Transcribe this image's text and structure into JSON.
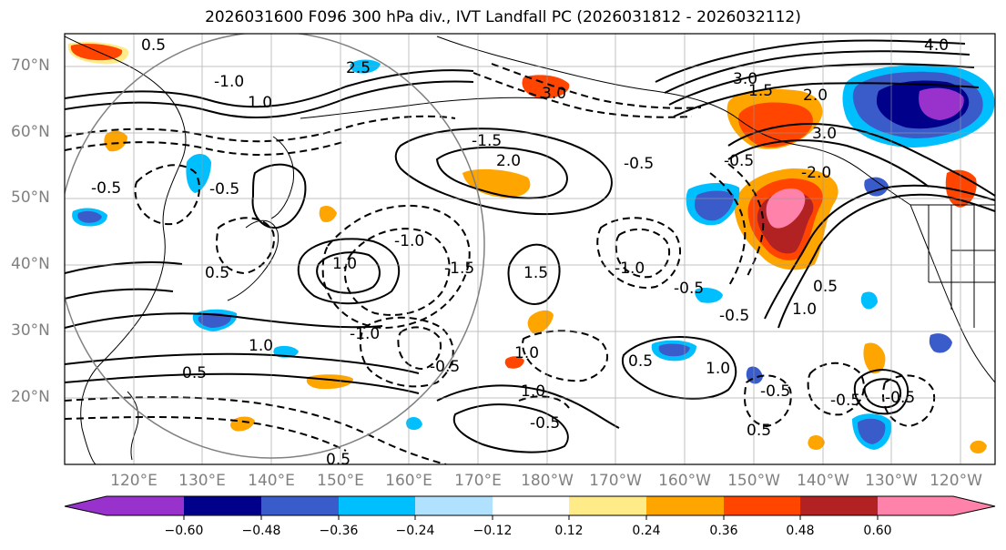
{
  "title": "2026031600 F096 300 hPa div., IVT Landfall PC (2026031812 - 2026032112)",
  "map": {
    "projection": "plate-carree",
    "lon_range": [
      110,
      245
    ],
    "lat_range": [
      10,
      75
    ],
    "lat_labels": [
      "20°N",
      "30°N",
      "40°N",
      "50°N",
      "60°N",
      "70°N"
    ],
    "lon_labels": [
      "120°E",
      "130°E",
      "140°E",
      "150°E",
      "160°E",
      "170°E",
      "180°W",
      "170°W",
      "160°W",
      "150°W",
      "140°W",
      "130°W",
      "120°W"
    ],
    "circle_center": [
      146,
      41
    ],
    "circle_radius_deg": 31,
    "contour_labels": [
      "0.5",
      "1.0",
      "1.5",
      "2.0",
      "2.5",
      "3.0",
      "4.0",
      "-0.5",
      "-1.0",
      "-1.5",
      "-2.0"
    ]
  },
  "colorbar": {
    "ticks": [
      "−0.60",
      "−0.48",
      "−0.36",
      "−0.24",
      "−0.12",
      "0.12",
      "0.24",
      "0.36",
      "0.48",
      "0.60"
    ],
    "colors": [
      "#9932cc",
      "#00008b",
      "#3a5ccb",
      "#00bfff",
      "#b0e2ff",
      "#ffffff",
      "#ffeb88",
      "#ffa500",
      "#ff4500",
      "#b22222",
      "#ff82ab"
    ]
  },
  "fill_colors": {
    "neg_strong": "#9932cc",
    "neg_dark": "#00008b",
    "neg_mid": "#3a5ccb",
    "neg_light": "#00bfff",
    "neg_pale": "#b0e2ff",
    "pos_pale": "#ffeb88",
    "pos_light": "#ffa500",
    "pos_mid": "#ff4500",
    "pos_dark": "#b22222",
    "pos_strong": "#ff82ab"
  }
}
